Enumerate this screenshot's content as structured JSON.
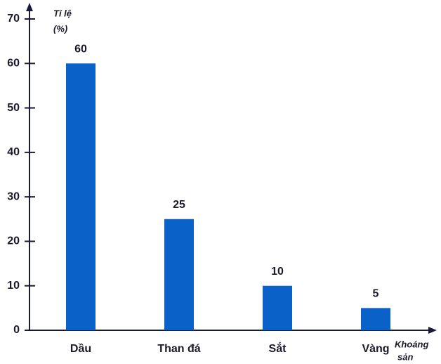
{
  "chart_data": {
    "type": "bar",
    "categories": [
      "Dầu",
      "Than đá",
      "Sắt",
      "Vàng"
    ],
    "values": [
      60,
      25,
      10,
      5
    ],
    "color": "#0a62c8",
    "y_label": [
      "Tỉ lệ",
      "(%)"
    ],
    "x_label": [
      "Khoáng",
      "sản"
    ],
    "ylim": [
      0,
      70
    ],
    "yticks": [
      0,
      10,
      20,
      30,
      40,
      50,
      60,
      70
    ],
    "data_labels": true
  }
}
